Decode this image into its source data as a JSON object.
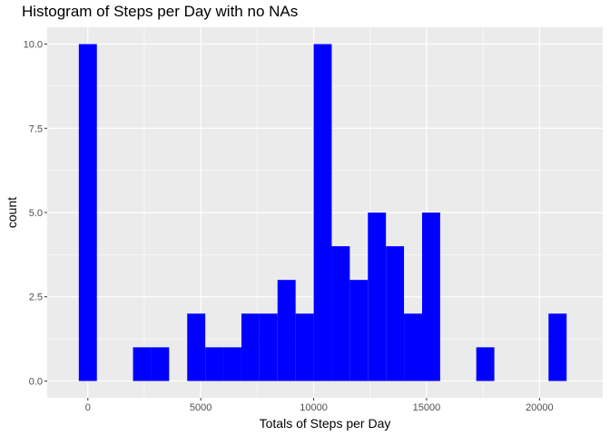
{
  "chart_data": {
    "type": "bar",
    "title": "Histogram of Steps per Day with no NAs",
    "xlabel": "Totals of Steps per Day",
    "ylabel": "count",
    "bin_width": 800,
    "x_ticks": [
      0,
      5000,
      10000,
      15000,
      20000
    ],
    "x_tick_labels": [
      "0",
      "5000",
      "10000",
      "15000",
      "20000"
    ],
    "y_ticks": [
      0,
      2.5,
      5,
      7.5,
      10
    ],
    "y_tick_labels": [
      "0.0",
      "2.5",
      "5.0",
      "7.5",
      "10.0"
    ],
    "xlim": [
      -1800,
      22800
    ],
    "ylim": [
      -0.5,
      10.5
    ],
    "grid": true,
    "bar_color": "#0000FF",
    "panel_background": "#EBEBEB",
    "grid_color": "#FFFFFF",
    "bins": [
      {
        "x_start": -400,
        "x_end": 400,
        "count": 10
      },
      {
        "x_start": 2000,
        "x_end": 2800,
        "count": 1
      },
      {
        "x_start": 2800,
        "x_end": 3600,
        "count": 1
      },
      {
        "x_start": 4400,
        "x_end": 5200,
        "count": 2
      },
      {
        "x_start": 5200,
        "x_end": 6000,
        "count": 1
      },
      {
        "x_start": 6000,
        "x_end": 6800,
        "count": 1
      },
      {
        "x_start": 6800,
        "x_end": 7600,
        "count": 2
      },
      {
        "x_start": 7600,
        "x_end": 8400,
        "count": 2
      },
      {
        "x_start": 8400,
        "x_end": 9200,
        "count": 3
      },
      {
        "x_start": 9200,
        "x_end": 10000,
        "count": 2
      },
      {
        "x_start": 10000,
        "x_end": 10800,
        "count": 10
      },
      {
        "x_start": 10800,
        "x_end": 11600,
        "count": 4
      },
      {
        "x_start": 11600,
        "x_end": 12400,
        "count": 3
      },
      {
        "x_start": 12400,
        "x_end": 13200,
        "count": 5
      },
      {
        "x_start": 13200,
        "x_end": 14000,
        "count": 4
      },
      {
        "x_start": 14000,
        "x_end": 14800,
        "count": 2
      },
      {
        "x_start": 14800,
        "x_end": 15600,
        "count": 5
      },
      {
        "x_start": 17200,
        "x_end": 18000,
        "count": 1
      },
      {
        "x_start": 20400,
        "x_end": 21200,
        "count": 2
      }
    ]
  }
}
